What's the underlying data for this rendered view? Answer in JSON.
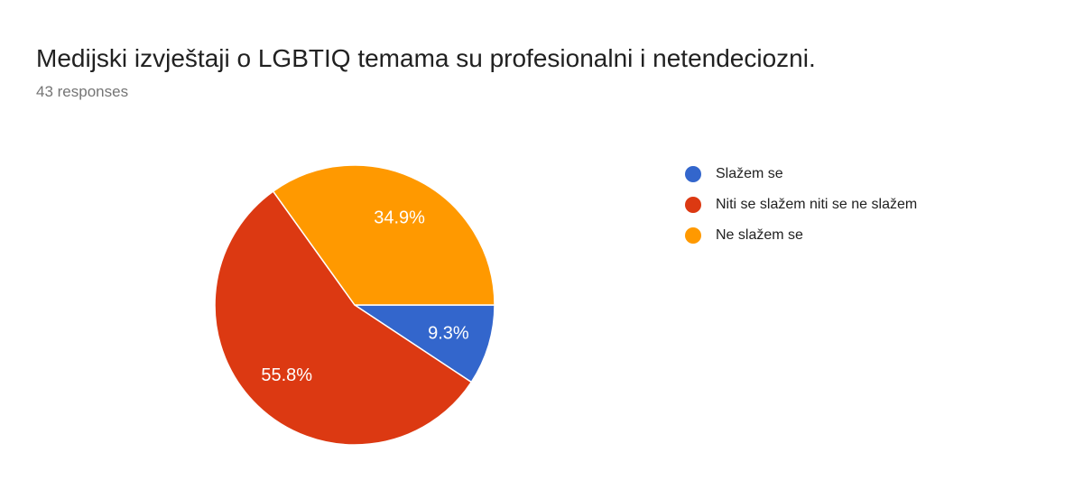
{
  "header": {
    "title": "Medijski izvještaji o LGBTIQ temama su profesionalni i netendeciozni.",
    "response_count": "43 responses"
  },
  "chart_data": {
    "type": "pie",
    "title": "Medijski izvještaji o LGBTIQ temama su profesionalni i netendeciozni.",
    "subtitle": "43 responses",
    "total_responses": 43,
    "start_angle_deg": 0,
    "direction": "clockwise",
    "legend_position": "right",
    "label_color": "#ffffff",
    "background_color": "#ffffff",
    "slices": [
      {
        "label": "Slažem se",
        "value_pct": 9.3,
        "display": "9.3%",
        "color": "#3366CC"
      },
      {
        "label": "Niti se slažem niti se ne slažem",
        "value_pct": 55.8,
        "display": "55.8%",
        "color": "#DC3912"
      },
      {
        "label": "Ne slažem se",
        "value_pct": 34.9,
        "display": "34.9%",
        "color": "#FF9900"
      }
    ]
  }
}
